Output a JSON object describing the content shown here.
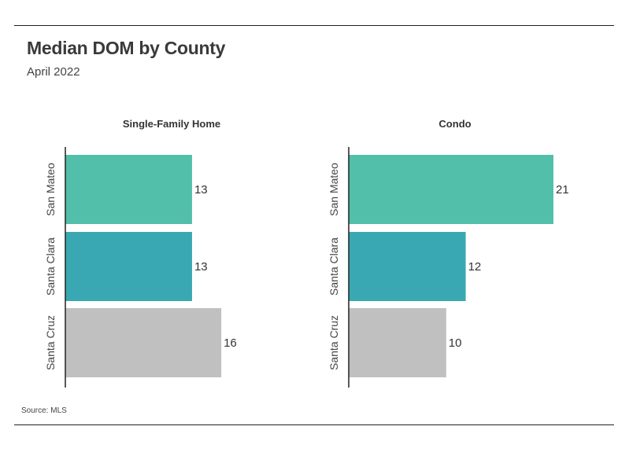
{
  "header": {
    "title": "Median DOM by County",
    "subtitle": "April 2022"
  },
  "footer": {
    "source": "Source:  MLS"
  },
  "colors": {
    "San Mateo": "#52bfaa",
    "Santa Clara": "#3aa8b3",
    "Santa Cruz": "#c0c0c0"
  },
  "chart_data": [
    {
      "type": "bar",
      "orientation": "horizontal",
      "title": "Single-Family Home",
      "categories": [
        "San Mateo",
        "Santa Clara",
        "Santa Cruz"
      ],
      "values": [
        13,
        13,
        16
      ],
      "xlim": [
        0,
        21
      ],
      "grid": false
    },
    {
      "type": "bar",
      "orientation": "horizontal",
      "title": "Condo",
      "categories": [
        "San Mateo",
        "Santa Clara",
        "Santa Cruz"
      ],
      "values": [
        21,
        12,
        10
      ],
      "xlim": [
        0,
        21
      ],
      "grid": false
    }
  ]
}
